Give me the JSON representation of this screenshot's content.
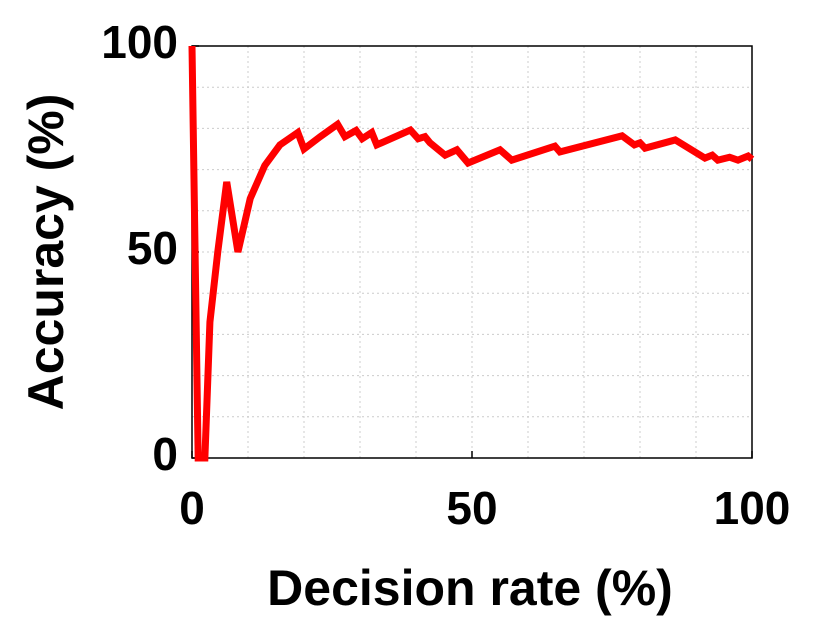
{
  "chart_data": {
    "type": "line",
    "xlabel": "Decision rate (%)",
    "ylabel": "Accuracy (%)",
    "series": [
      {
        "name": "Accuracy",
        "color": "#ff0000",
        "x": [
          0,
          1.1,
          2.3,
          3.2,
          4.6,
          6.2,
          8.2,
          10.4,
          13,
          15.7,
          18.9,
          20,
          22.9,
          26,
          27.3,
          29.3,
          30.4,
          32.1,
          33,
          39,
          40.4,
          41.6,
          42.5,
          45.2,
          47.3,
          49.3,
          55,
          57.1,
          64.8,
          65.7,
          76.8,
          79,
          80,
          80.9,
          86.3,
          91.6,
          92.9,
          93.9,
          96,
          97.5,
          99.3,
          100
        ],
        "values": [
          100,
          0,
          0,
          33,
          50,
          67,
          50,
          63,
          71,
          76,
          79,
          75,
          78,
          81,
          78,
          79.5,
          77.5,
          79,
          76,
          79.6,
          77.5,
          78,
          76.5,
          73.5,
          74.8,
          71.6,
          74.8,
          72.3,
          75.7,
          74.3,
          78.2,
          76,
          76.5,
          75.2,
          77.2,
          72.8,
          73.5,
          72.3,
          73,
          72.3,
          73.3,
          72.5
        ]
      }
    ],
    "xlim": [
      0,
      100
    ],
    "ylim": [
      0,
      100
    ],
    "xticks": [
      0,
      50,
      100
    ],
    "yticks": [
      0,
      50,
      100
    ],
    "grid": true,
    "grid_step": 10
  }
}
